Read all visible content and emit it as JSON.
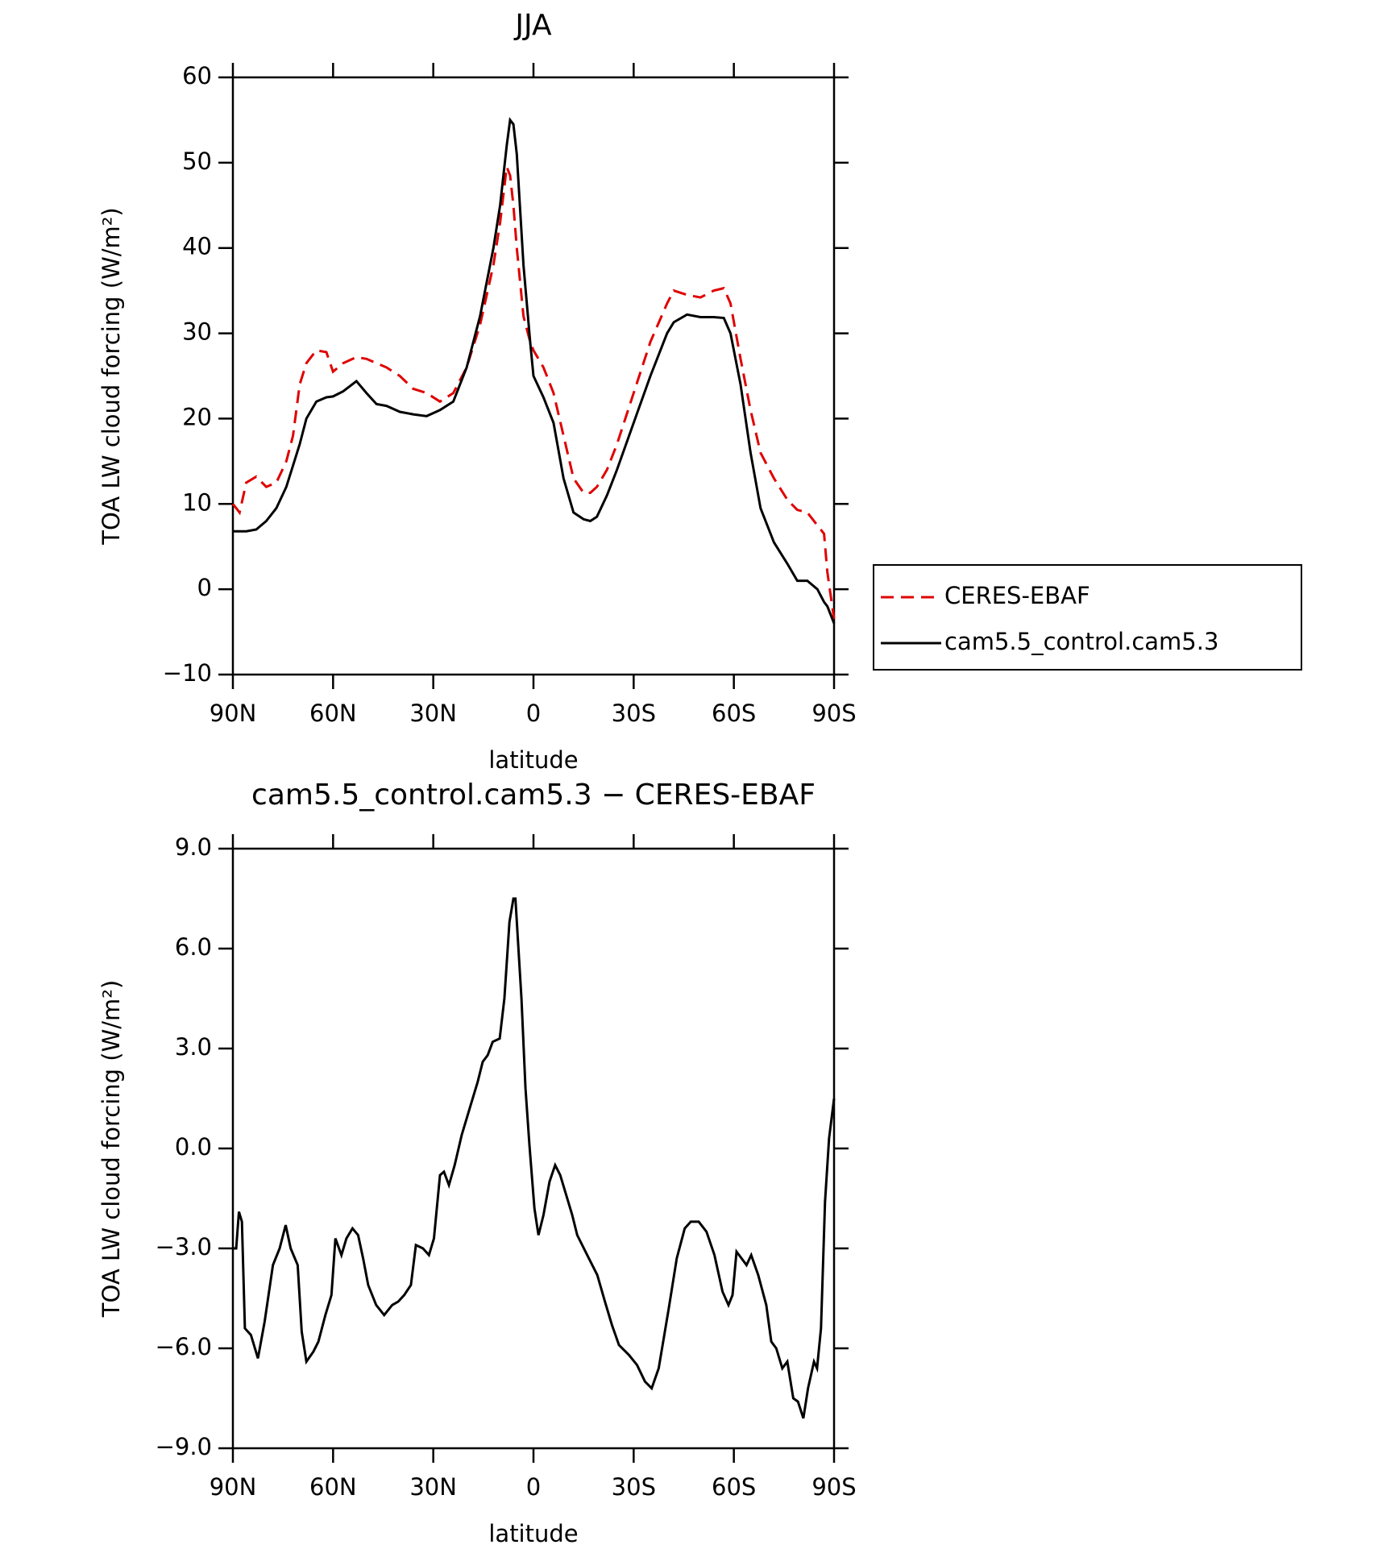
{
  "chart_data": [
    {
      "type": "line",
      "title": "JJA",
      "xlabel": "latitude",
      "ylabel": "TOA LW cloud forcing (W/m²)",
      "xlim": [
        90,
        -90
      ],
      "xticks": [
        {
          "value": 90,
          "label": "90N"
        },
        {
          "value": 60,
          "label": "60N"
        },
        {
          "value": 30,
          "label": "30N"
        },
        0,
        {
          "value": -30,
          "label": "30S"
        },
        {
          "value": -60,
          "label": "60S"
        },
        {
          "value": -90,
          "label": "90S"
        }
      ],
      "ylim": [
        -10,
        60
      ],
      "yticks": [
        {
          "value": -10,
          "label": "−10"
        },
        0,
        10,
        20,
        30,
        40,
        50,
        60
      ],
      "legend": "right",
      "x": [
        90,
        88,
        86,
        83,
        80,
        77,
        74,
        72,
        70,
        68,
        65,
        62,
        60,
        57,
        53,
        50,
        47,
        44,
        40,
        36,
        32,
        28,
        24,
        20,
        16,
        12,
        10,
        8,
        7,
        6,
        5,
        3,
        1,
        0,
        -3,
        -6,
        -9,
        -12,
        -15,
        -17,
        -19,
        -22,
        -25,
        -30,
        -35,
        -40,
        -42,
        -46,
        -50,
        -54,
        -57,
        -59,
        -62,
        -65,
        -68,
        -72,
        -76,
        -79,
        -82,
        -85,
        -87,
        -88,
        -90
      ],
      "series": [
        {
          "name": "CERES-EBAF",
          "color": "#e00000",
          "dashed": true,
          "values": [
            10,
            9,
            12.5,
            13.2,
            12,
            12.5,
            15,
            18,
            24,
            26.5,
            28,
            27.8,
            25.5,
            26.5,
            27.2,
            27,
            26.5,
            26,
            25,
            23.5,
            23,
            22,
            23,
            26,
            31,
            38,
            43,
            49.5,
            48.5,
            45,
            40,
            32,
            29,
            28,
            26,
            23,
            18,
            13,
            11.3,
            11.3,
            12,
            14,
            17,
            23,
            29,
            33.5,
            35,
            34.5,
            34.2,
            35,
            35.3,
            33.5,
            27,
            21,
            16,
            13,
            10.5,
            9.3,
            9,
            7.5,
            6.5,
            2,
            -3.5
          ]
        },
        {
          "name": "cam5.5_control.cam5.3",
          "color": "#000000",
          "dashed": false,
          "values": [
            6.8,
            6.8,
            6.8,
            7,
            8,
            9.5,
            12,
            14.5,
            17,
            20,
            22,
            22.5,
            22.6,
            23.2,
            24.4,
            23,
            21.7,
            21.5,
            20.8,
            20.5,
            20.3,
            21,
            22,
            26,
            32,
            40,
            45,
            52,
            55,
            54.5,
            51,
            38,
            29,
            25,
            22.5,
            19.5,
            13,
            9,
            8.2,
            8,
            8.5,
            11,
            14,
            19.5,
            25,
            30,
            31.3,
            32.2,
            31.9,
            31.9,
            31.8,
            30,
            24,
            16,
            9.5,
            5.5,
            3,
            1,
            1,
            0,
            -1.5,
            -2,
            -4
          ]
        }
      ]
    },
    {
      "type": "line",
      "title": "cam5.5_control.cam5.3 − CERES-EBAF",
      "xlabel": "latitude",
      "ylabel": "TOA LW cloud forcing (W/m²)",
      "xlim": [
        90,
        -90
      ],
      "xticks": [
        {
          "value": 90,
          "label": "90N"
        },
        {
          "value": 60,
          "label": "60N"
        },
        {
          "value": 30,
          "label": "30N"
        },
        0,
        {
          "value": -30,
          "label": "30S"
        },
        {
          "value": -60,
          "label": "60S"
        },
        {
          "value": -90,
          "label": "90S"
        }
      ],
      "ylim": [
        -9,
        9
      ],
      "yticks": [
        {
          "value": -9,
          "label": "−9.0"
        },
        {
          "value": -6,
          "label": "−6.0"
        },
        {
          "value": -3,
          "label": "−3.0"
        },
        {
          "value": 0,
          "label": "0.0"
        },
        {
          "value": 3,
          "label": "3.0"
        },
        {
          "value": 6,
          "label": "6.0"
        },
        {
          "value": 9,
          "label": "9.0"
        }
      ],
      "x": [
        90,
        89,
        88.2,
        87.3,
        86.4,
        84.6,
        82.5,
        80.5,
        78,
        76,
        74.2,
        72.7,
        70.6,
        69.4,
        68,
        65.9,
        64.4,
        62.3,
        60.5,
        59.3,
        57.5,
        56,
        54.2,
        52.5,
        51,
        49.5,
        47.1,
        44.7,
        42.3,
        40.5,
        38.7,
        36.7,
        35.2,
        33.1,
        31.3,
        29.8,
        28,
        26.8,
        25.3,
        23.6,
        21.5,
        19.1,
        16.7,
        15.2,
        13.7,
        12.2,
        10.1,
        8.7,
        7.2,
        6,
        5.4,
        3.6,
        2.4,
        1.2,
        -0.3,
        -1.5,
        -3,
        -4.8,
        -6.5,
        -8,
        -9.5,
        -11.6,
        -13.1,
        -16.1,
        -19.1,
        -21.4,
        -23.5,
        -25.6,
        -28.6,
        -31,
        -33.4,
        -35.4,
        -37.5,
        -40.5,
        -42.9,
        -45.3,
        -47.1,
        -49.5,
        -51.8,
        -54.2,
        -56.6,
        -58.4,
        -59.6,
        -60.8,
        -62.3,
        -63.8,
        -65.2,
        -67.3,
        -69.7,
        -71.2,
        -72.7,
        -74.5,
        -76,
        -77.8,
        -79.2,
        -80.8,
        -82.2,
        -84,
        -84.9,
        -86.1,
        -87.3,
        -88.5,
        -90
      ],
      "series": [
        {
          "color": "#000000",
          "dashed": false,
          "values": [
            -3,
            -3,
            -1.9,
            -2.2,
            -5.4,
            -5.6,
            -6.3,
            -5.2,
            -3.5,
            -3,
            -2.3,
            -3,
            -3.5,
            -5.5,
            -6.4,
            -6.1,
            -5.8,
            -5,
            -4.4,
            -2.7,
            -3.2,
            -2.7,
            -2.4,
            -2.6,
            -3.3,
            -4.1,
            -4.7,
            -5,
            -4.7,
            -4.6,
            -4.4,
            -4.1,
            -2.9,
            -3,
            -3.2,
            -2.7,
            -0.8,
            -0.7,
            -1.1,
            -0.5,
            0.4,
            1.2,
            2,
            2.6,
            2.8,
            3.2,
            3.3,
            4.5,
            6.8,
            7.5,
            7.5,
            4.5,
            1.8,
            0.1,
            -1.8,
            -2.6,
            -2,
            -1,
            -0.5,
            -0.8,
            -1.3,
            -2,
            -2.6,
            -3.2,
            -3.8,
            -4.6,
            -5.3,
            -5.9,
            -6.2,
            -6.5,
            -7,
            -7.2,
            -6.6,
            -4.8,
            -3.3,
            -2.4,
            -2.2,
            -2.2,
            -2.5,
            -3.2,
            -4.3,
            -4.7,
            -4.4,
            -3.1,
            -3.3,
            -3.5,
            -3.2,
            -3.8,
            -4.7,
            -5.8,
            -6,
            -6.6,
            -6.4,
            -7.5,
            -7.6,
            -8.1,
            -7.2,
            -6.4,
            -6.6,
            -5.4,
            -1.6,
            0.3,
            1.5
          ]
        }
      ]
    }
  ]
}
